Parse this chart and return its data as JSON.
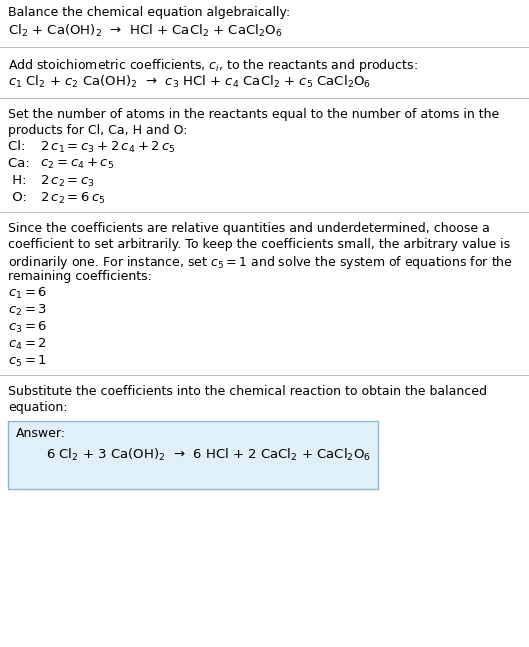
{
  "bg_color": "#ffffff",
  "text_color": "#000000",
  "answer_box_color": "#e0f0f8",
  "answer_box_border": "#90b8cc",
  "figsize": [
    5.29,
    6.47
  ],
  "dpi": 100,
  "section1_title": "Balance the chemical equation algebraically:",
  "section1_eq": "Cl$_2$ + Ca(OH)$_2$  →  HCl + CaCl$_2$ + CaCl$_2$O$_6$",
  "section2_title": "Add stoichiometric coefficients, $c_i$, to the reactants and products:",
  "section2_eq": "$c_1$ Cl$_2$ + $c_2$ Ca(OH)$_2$  →  $c_3$ HCl + $c_4$ CaCl$_2$ + $c_5$ CaCl$_2$O$_6$",
  "section3_title_lines": [
    "Set the number of atoms in the reactants equal to the number of atoms in the",
    "products for Cl, Ca, H and O:"
  ],
  "section3_lines": [
    [
      "Cl: ",
      " $2\\,c_1 = c_3 + 2\\,c_4 + 2\\,c_5$"
    ],
    [
      "Ca: ",
      " $c_2 = c_4 + c_5$"
    ],
    [
      " H: ",
      " $2\\,c_2 = c_3$"
    ],
    [
      " O: ",
      " $2\\,c_2 = 6\\,c_5$"
    ]
  ],
  "section4_title_lines": [
    "Since the coefficients are relative quantities and underdetermined, choose a",
    "coefficient to set arbitrarily. To keep the coefficients small, the arbitrary value is",
    "ordinarily one. For instance, set $c_5 = 1$ and solve the system of equations for the",
    "remaining coefficients:"
  ],
  "section4_lines": [
    "$c_1 = 6$",
    "$c_2 = 3$",
    "$c_3 = 6$",
    "$c_4 = 2$",
    "$c_5 = 1$"
  ],
  "section5_title_lines": [
    "Substitute the coefficients into the chemical reaction to obtain the balanced",
    "equation:"
  ],
  "answer_label": "Answer:",
  "answer_eq": "6 Cl$_2$ + 3 Ca(OH)$_2$  →  6 HCl + 2 CaCl$_2$ + CaCl$_2$O$_6$"
}
